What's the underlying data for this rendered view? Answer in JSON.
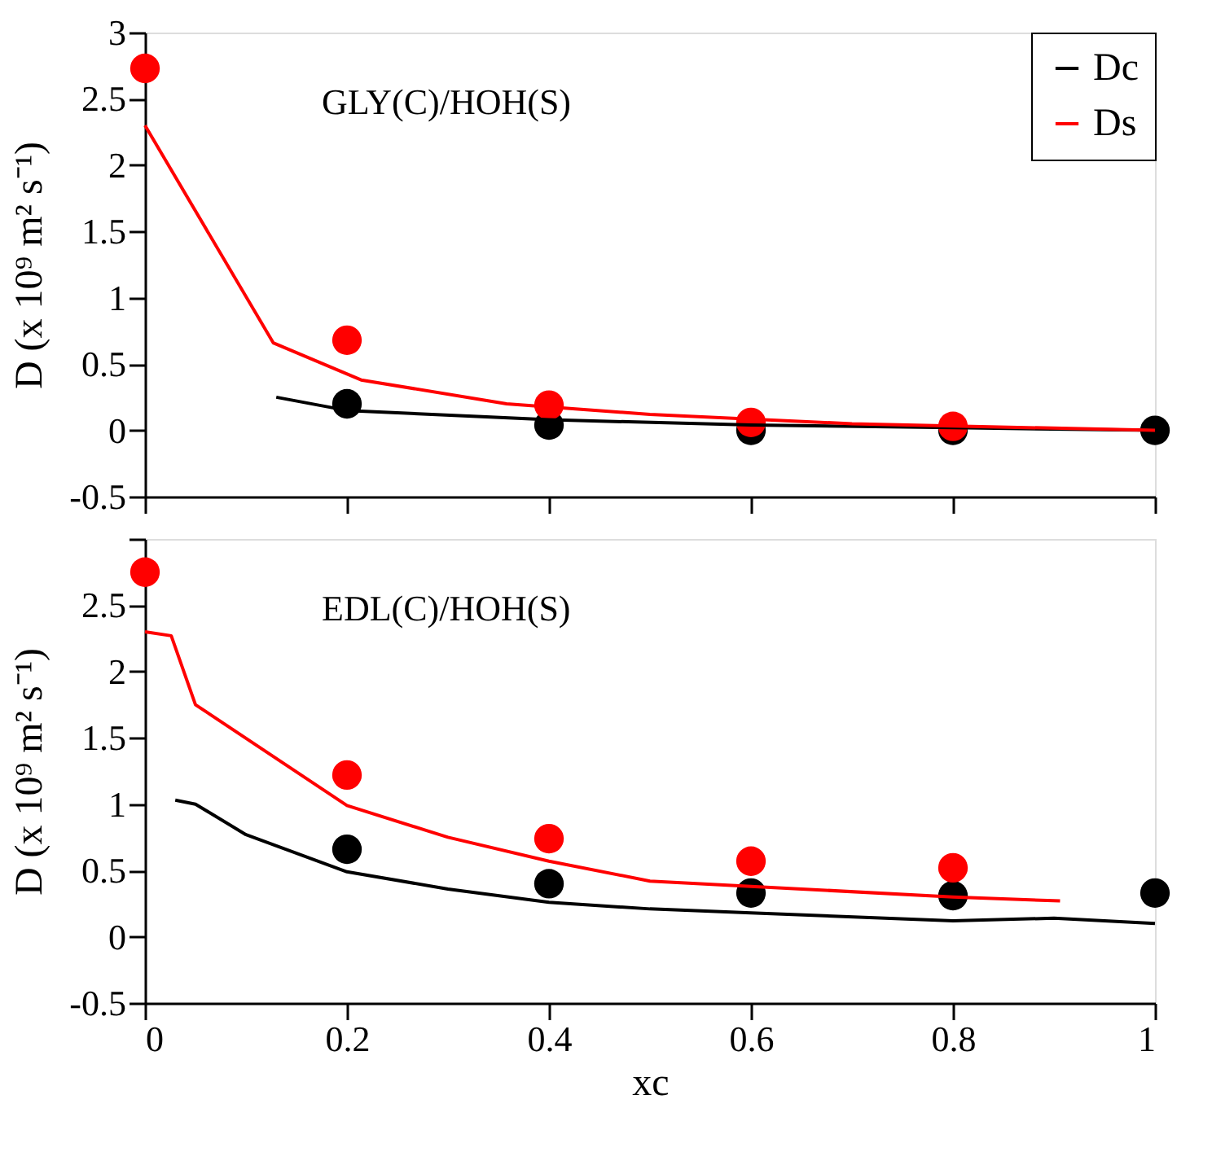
{
  "chart_data": [
    {
      "type": "line",
      "annotations": [
        "GLY(C)/HOH(S)"
      ],
      "ylabel": "D (x 10⁹ m² s⁻¹)",
      "xlim": [
        0,
        1
      ],
      "xticks": [
        0,
        0.2,
        0.4,
        0.6,
        0.8,
        1
      ],
      "ylim": [
        -0.5,
        3
      ],
      "yticks": [
        -0.5,
        0,
        0.5,
        1,
        1.5,
        2,
        2.5,
        3
      ],
      "grid": false,
      "legend": "top right",
      "tick_labels": "y",
      "series": [
        {
          "name": "Dc",
          "color": "#000000",
          "x": [
            0.13,
            0.2,
            0.4,
            0.6,
            0.8,
            1.0
          ],
          "values": [
            0.25,
            0.15,
            0.08,
            0.04,
            0.02,
            0.0
          ]
        },
        {
          "name": "Ds",
          "color": "#ff0000",
          "x": [
            0,
            0.127,
            0.214,
            0.358,
            0.5,
            0.7,
            1.0
          ],
          "values": [
            2.3,
            0.66,
            0.38,
            0.2,
            0.12,
            0.05,
            0.0
          ]
        },
        {
          "type": "scatter",
          "marker": "circle",
          "color": "#000000",
          "x": [
            0.2,
            0.4,
            0.6,
            0.8,
            1.0
          ],
          "values": [
            0.2,
            0.04,
            0.0,
            0.0,
            0.0
          ]
        },
        {
          "type": "scatter",
          "marker": "circle",
          "color": "#ff0000",
          "x": [
            0,
            0.2,
            0.4,
            0.6,
            0.8
          ],
          "values": [
            2.73,
            0.68,
            0.19,
            0.06,
            0.03
          ]
        }
      ]
    },
    {
      "type": "line",
      "annotations": [
        "EDL(C)/HOH(S)"
      ],
      "xlabel": "xc",
      "ylabel": "D (x 10⁹ m² s⁻¹)",
      "xlim": [
        0,
        1
      ],
      "xticks": [
        0,
        0.2,
        0.4,
        0.6,
        0.8,
        1
      ],
      "ylim": [
        -0.5,
        3
      ],
      "yticks": [
        -0.5,
        0,
        0.5,
        1,
        1.5,
        2,
        2.5,
        {
          "value": 3,
          "label": null
        }
      ],
      "grid": false,
      "series": [
        {
          "color": "#000000",
          "x": [
            0.03,
            0.05,
            0.1,
            0.2,
            0.3,
            0.4,
            0.5,
            0.6,
            0.8,
            0.9,
            1.0
          ],
          "values": [
            1.03,
            1.0,
            0.77,
            0.49,
            0.36,
            0.26,
            0.21,
            0.18,
            0.12,
            0.14,
            0.1
          ]
        },
        {
          "color": "#ff0000",
          "x": [
            0,
            0.026,
            0.05,
            0.2,
            0.3,
            0.4,
            0.5,
            0.6,
            0.8,
            0.906
          ],
          "values": [
            2.3,
            2.27,
            1.75,
            0.99,
            0.75,
            0.57,
            0.42,
            0.38,
            0.3,
            0.27
          ]
        },
        {
          "type": "scatter",
          "marker": "circle",
          "color": "#000000",
          "x": [
            0.2,
            0.4,
            0.6,
            0.8,
            1.0
          ],
          "values": [
            0.66,
            0.4,
            0.33,
            0.31,
            0.33
          ]
        },
        {
          "type": "scatter",
          "marker": "circle",
          "color": "#ff0000",
          "x": [
            0,
            0.2,
            0.4,
            0.6,
            0.8
          ],
          "values": [
            2.75,
            1.22,
            0.74,
            0.57,
            0.52
          ]
        }
      ]
    }
  ]
}
